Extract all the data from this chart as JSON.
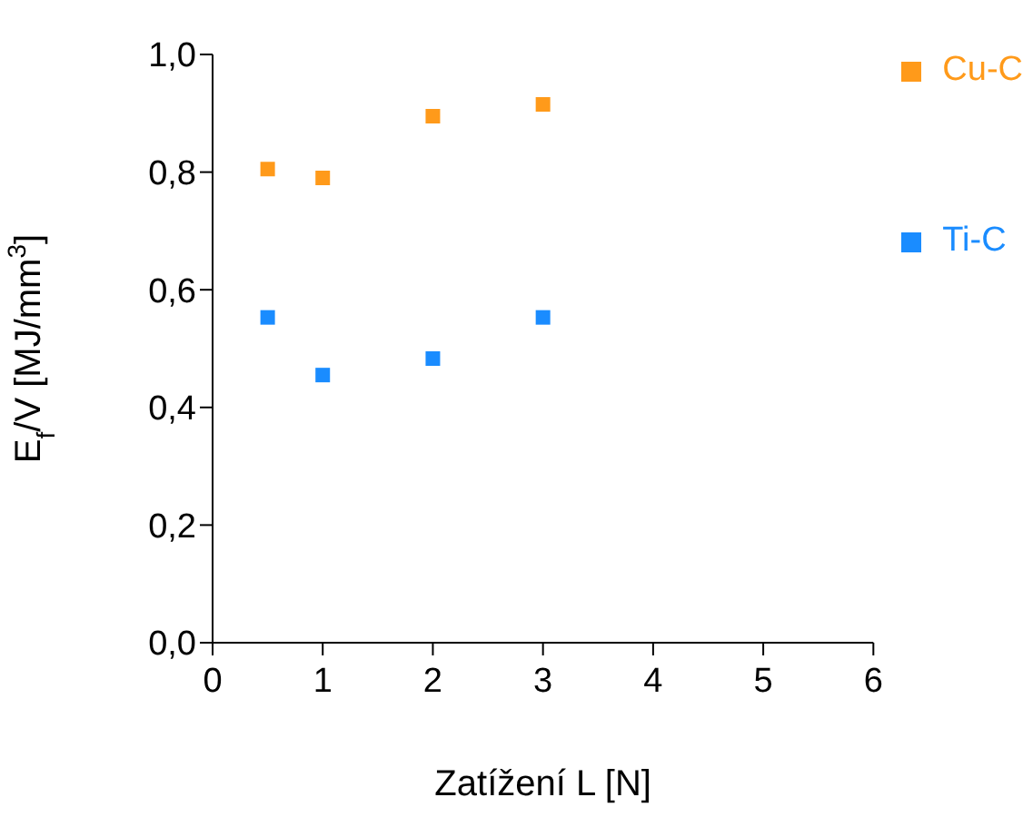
{
  "chart_data": {
    "type": "scatter",
    "xlabel": "Zatížení L [N]",
    "ylabel": "E$_{f}$/V [MJ/mm$^{3}$]",
    "x": [
      0.5,
      1,
      2,
      3
    ],
    "series": [
      {
        "name": "Cu-C",
        "color": "#ff9a1a",
        "values": [
          0.805,
          0.79,
          0.895,
          0.915
        ]
      },
      {
        "name": "Ti-C",
        "color": "#1a8cff",
        "values": [
          0.553,
          0.455,
          0.483,
          0.553
        ]
      }
    ],
    "xlim": [
      0,
      6
    ],
    "xticks": [
      0,
      1,
      2,
      3,
      4,
      5,
      6
    ],
    "ylim": [
      0,
      1.0
    ],
    "yticks": [
      {
        "value": 0,
        "label": "0,0"
      },
      {
        "value": 0.2,
        "label": "0,2"
      },
      {
        "value": 0.4,
        "label": "0,4"
      },
      {
        "value": 0.6,
        "label": "0,6"
      },
      {
        "value": 0.8,
        "label": "0,8"
      },
      {
        "value": 1.0,
        "label": "1,0"
      }
    ],
    "marker": "square",
    "legend": "right",
    "grid": false
  }
}
